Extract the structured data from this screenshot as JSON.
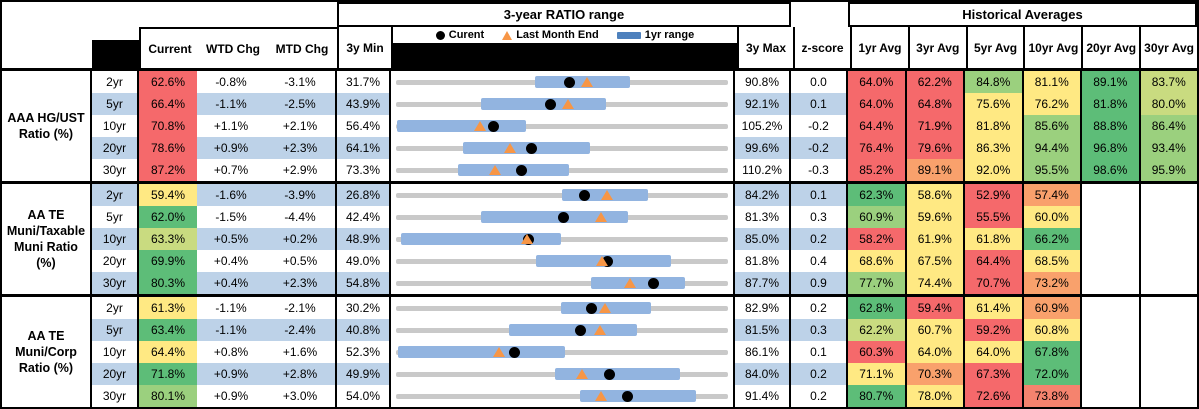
{
  "header": {
    "range_title": "3-year RATIO range",
    "hist_title": "Historical Averages",
    "col_current": "Current",
    "col_wtd": "WTD Chg",
    "col_mtd": "MTD Chg",
    "col_min": "3y Min",
    "col_max": "3y Max",
    "col_z": "z-score",
    "avg_cols": [
      "1yr Avg",
      "3yr Avg",
      "5yr Avg",
      "10yr Avg",
      "20yr Avg",
      "30yr Avg"
    ],
    "legend": {
      "current_label": "Curent",
      "lme_label": "Last Month End",
      "range_label": "1yr range"
    }
  },
  "palette": {
    "red": "#F5696B",
    "salmon": "#F5836E",
    "orange": "#F9A16C",
    "yellow": "#FFE983",
    "ygreen": "#C9DB80",
    "lgreen": "#9BD07E",
    "green": "#5DBD78",
    "white": "#FFFFFF",
    "band_blue": "#BDD2E8",
    "range_bar_blue": "#92B4E0",
    "legend_bar_blue": "#4E81BD",
    "track_gray": "#C9C9C9",
    "triangle_orange": "#F79646"
  },
  "groups": [
    {
      "name": "AAA HG/UST Ratio (%)",
      "rows": [
        {
          "tenor": "2yr",
          "band": false,
          "current": "62.6%",
          "cc": "red",
          "wtd": "-0.8%",
          "mtd": "-3.1%",
          "min": "31.7%",
          "max": "90.8%",
          "z": "0.0",
          "chart": {
            "lo": 31.7,
            "hi": 90.8,
            "r1lo": 56.5,
            "r1hi": 73.4,
            "cur": 62.6,
            "lme": 65.7
          },
          "avgs": [
            {
              "v": "64.0%",
              "c": "red"
            },
            {
              "v": "62.2%",
              "c": "red"
            },
            {
              "v": "84.8%",
              "c": "lgreen"
            },
            {
              "v": "81.1%",
              "c": "yellow"
            },
            {
              "v": "89.1%",
              "c": "green"
            },
            {
              "v": "83.7%",
              "c": "ygreen"
            }
          ]
        },
        {
          "tenor": "5yr",
          "band": true,
          "current": "66.4%",
          "cc": "red",
          "wtd": "-1.1%",
          "mtd": "-2.5%",
          "min": "43.9%",
          "max": "92.1%",
          "z": "0.1",
          "chart": {
            "lo": 43.9,
            "hi": 92.1,
            "r1lo": 56.2,
            "r1hi": 74.4,
            "cur": 66.4,
            "lme": 68.9
          },
          "avgs": [
            {
              "v": "64.0%",
              "c": "red"
            },
            {
              "v": "64.8%",
              "c": "red"
            },
            {
              "v": "75.6%",
              "c": "yellow"
            },
            {
              "v": "76.2%",
              "c": "yellow"
            },
            {
              "v": "81.8%",
              "c": "green"
            },
            {
              "v": "80.0%",
              "c": "ygreen"
            }
          ]
        },
        {
          "tenor": "10yr",
          "band": false,
          "current": "70.8%",
          "cc": "red",
          "wtd": "+1.1%",
          "mtd": "+2.1%",
          "min": "56.4%",
          "max": "105.2%",
          "z": "-0.2",
          "chart": {
            "lo": 56.4,
            "hi": 105.2,
            "r1lo": 56.6,
            "r1hi": 75.5,
            "cur": 70.8,
            "lme": 68.7
          },
          "avgs": [
            {
              "v": "64.4%",
              "c": "red"
            },
            {
              "v": "71.9%",
              "c": "red"
            },
            {
              "v": "81.8%",
              "c": "yellow"
            },
            {
              "v": "85.6%",
              "c": "lgreen"
            },
            {
              "v": "88.8%",
              "c": "green"
            },
            {
              "v": "86.4%",
              "c": "lgreen"
            }
          ]
        },
        {
          "tenor": "20yr",
          "band": true,
          "current": "78.6%",
          "cc": "red",
          "wtd": "+0.9%",
          "mtd": "+2.3%",
          "min": "64.1%",
          "max": "99.6%",
          "z": "-0.2",
          "chart": {
            "lo": 64.1,
            "hi": 99.6,
            "r1lo": 71.3,
            "r1hi": 84.8,
            "cur": 78.6,
            "lme": 76.3
          },
          "avgs": [
            {
              "v": "76.4%",
              "c": "red"
            },
            {
              "v": "79.6%",
              "c": "red"
            },
            {
              "v": "86.3%",
              "c": "yellow"
            },
            {
              "v": "94.4%",
              "c": "lgreen"
            },
            {
              "v": "96.8%",
              "c": "green"
            },
            {
              "v": "93.4%",
              "c": "lgreen"
            }
          ]
        },
        {
          "tenor": "30yr",
          "band": false,
          "current": "87.2%",
          "cc": "red",
          "wtd": "+0.7%",
          "mtd": "+2.9%",
          "min": "73.3%",
          "max": "110.2%",
          "z": "-0.3",
          "chart": {
            "lo": 73.3,
            "hi": 110.2,
            "r1lo": 80.2,
            "r1hi": 92.5,
            "cur": 87.2,
            "lme": 84.3
          },
          "avgs": [
            {
              "v": "85.2%",
              "c": "red"
            },
            {
              "v": "89.1%",
              "c": "orange"
            },
            {
              "v": "92.0%",
              "c": "yellow"
            },
            {
              "v": "95.5%",
              "c": "lgreen"
            },
            {
              "v": "98.6%",
              "c": "green"
            },
            {
              "v": "95.9%",
              "c": "lgreen"
            }
          ]
        }
      ]
    },
    {
      "name": "AA TE Muni/Taxable Muni Ratio (%)",
      "rows": [
        {
          "tenor": "2yr",
          "band": true,
          "current": "59.4%",
          "cc": "yellow",
          "wtd": "-1.6%",
          "mtd": "-3.9%",
          "min": "26.8%",
          "max": "84.2%",
          "z": "0.1",
          "chart": {
            "lo": 26.8,
            "hi": 84.2,
            "r1lo": 55.5,
            "r1hi": 70.4,
            "cur": 59.4,
            "lme": 63.3
          },
          "avgs": [
            {
              "v": "62.3%",
              "c": "green"
            },
            {
              "v": "58.6%",
              "c": "yellow"
            },
            {
              "v": "52.9%",
              "c": "red"
            },
            {
              "v": "57.4%",
              "c": "orange"
            },
            {
              "v": "",
              "c": "white"
            },
            {
              "v": "",
              "c": "white"
            }
          ]
        },
        {
          "tenor": "5yr",
          "band": false,
          "current": "62.0%",
          "cc": "green",
          "wtd": "-1.5%",
          "mtd": "-4.4%",
          "min": "42.4%",
          "max": "81.3%",
          "z": "0.3",
          "chart": {
            "lo": 42.4,
            "hi": 81.3,
            "r1lo": 52.4,
            "r1hi": 69.6,
            "cur": 62.0,
            "lme": 66.4
          },
          "avgs": [
            {
              "v": "60.9%",
              "c": "lgreen"
            },
            {
              "v": "59.6%",
              "c": "yellow"
            },
            {
              "v": "55.5%",
              "c": "red"
            },
            {
              "v": "60.0%",
              "c": "yellow"
            },
            {
              "v": "",
              "c": "white"
            },
            {
              "v": "",
              "c": "white"
            }
          ]
        },
        {
          "tenor": "10yr",
          "band": true,
          "current": "63.3%",
          "cc": "ygreen",
          "wtd": "+0.5%",
          "mtd": "+0.2%",
          "min": "48.9%",
          "max": "85.0%",
          "z": "0.2",
          "chart": {
            "lo": 48.9,
            "hi": 85.0,
            "r1lo": 49.4,
            "r1hi": 66.8,
            "cur": 63.3,
            "lme": 63.1
          },
          "avgs": [
            {
              "v": "58.2%",
              "c": "red"
            },
            {
              "v": "61.9%",
              "c": "yellow"
            },
            {
              "v": "61.8%",
              "c": "yellow"
            },
            {
              "v": "66.2%",
              "c": "green"
            },
            {
              "v": "",
              "c": "white"
            },
            {
              "v": "",
              "c": "white"
            }
          ]
        },
        {
          "tenor": "20yr",
          "band": false,
          "current": "69.9%",
          "cc": "green",
          "wtd": "+0.4%",
          "mtd": "+0.5%",
          "min": "49.0%",
          "max": "81.8%",
          "z": "0.4",
          "chart": {
            "lo": 49.0,
            "hi": 81.8,
            "r1lo": 62.8,
            "r1hi": 76.2,
            "cur": 69.9,
            "lme": 69.4
          },
          "avgs": [
            {
              "v": "68.6%",
              "c": "yellow"
            },
            {
              "v": "67.5%",
              "c": "yellow"
            },
            {
              "v": "64.4%",
              "c": "red"
            },
            {
              "v": "68.5%",
              "c": "yellow"
            },
            {
              "v": "",
              "c": "white"
            },
            {
              "v": "",
              "c": "white"
            }
          ]
        },
        {
          "tenor": "30yr",
          "band": true,
          "current": "80.3%",
          "cc": "green",
          "wtd": "+0.4%",
          "mtd": "+2.3%",
          "min": "54.8%",
          "max": "87.7%",
          "z": "0.9",
          "chart": {
            "lo": 54.8,
            "hi": 87.7,
            "r1lo": 74.1,
            "r1hi": 83.4,
            "cur": 80.3,
            "lme": 78.0
          },
          "avgs": [
            {
              "v": "77.7%",
              "c": "lgreen"
            },
            {
              "v": "74.4%",
              "c": "yellow"
            },
            {
              "v": "70.7%",
              "c": "red"
            },
            {
              "v": "73.2%",
              "c": "orange"
            },
            {
              "v": "",
              "c": "white"
            },
            {
              "v": "",
              "c": "white"
            }
          ]
        }
      ]
    },
    {
      "name": "AA TE Muni/Corp Ratio (%)",
      "rows": [
        {
          "tenor": "2yr",
          "band": false,
          "current": "61.3%",
          "cc": "yellow",
          "wtd": "-1.1%",
          "mtd": "-2.1%",
          "min": "30.2%",
          "max": "82.9%",
          "z": "0.2",
          "chart": {
            "lo": 30.2,
            "hi": 82.9,
            "r1lo": 56.4,
            "r1hi": 70.7,
            "cur": 61.3,
            "lme": 63.4
          },
          "avgs": [
            {
              "v": "62.8%",
              "c": "green"
            },
            {
              "v": "59.4%",
              "c": "red"
            },
            {
              "v": "61.4%",
              "c": "yellow"
            },
            {
              "v": "60.9%",
              "c": "orange"
            },
            {
              "v": "",
              "c": "white"
            },
            {
              "v": "",
              "c": "white"
            }
          ]
        },
        {
          "tenor": "5yr",
          "band": true,
          "current": "63.4%",
          "cc": "green",
          "wtd": "-1.1%",
          "mtd": "-2.4%",
          "min": "40.8%",
          "max": "81.5%",
          "z": "0.3",
          "chart": {
            "lo": 40.8,
            "hi": 81.5,
            "r1lo": 54.7,
            "r1hi": 70.4,
            "cur": 63.4,
            "lme": 65.8
          },
          "avgs": [
            {
              "v": "62.2%",
              "c": "ygreen"
            },
            {
              "v": "60.7%",
              "c": "yellow"
            },
            {
              "v": "59.2%",
              "c": "red"
            },
            {
              "v": "60.8%",
              "c": "yellow"
            },
            {
              "v": "",
              "c": "white"
            },
            {
              "v": "",
              "c": "white"
            }
          ]
        },
        {
          "tenor": "10yr",
          "band": false,
          "current": "64.4%",
          "cc": "yellow",
          "wtd": "+0.8%",
          "mtd": "+1.6%",
          "min": "52.3%",
          "max": "86.1%",
          "z": "0.1",
          "chart": {
            "lo": 52.3,
            "hi": 86.1,
            "r1lo": 52.5,
            "r1hi": 69.5,
            "cur": 64.4,
            "lme": 62.8
          },
          "avgs": [
            {
              "v": "60.3%",
              "c": "red"
            },
            {
              "v": "64.0%",
              "c": "yellow"
            },
            {
              "v": "64.0%",
              "c": "yellow"
            },
            {
              "v": "67.8%",
              "c": "green"
            },
            {
              "v": "",
              "c": "white"
            },
            {
              "v": "",
              "c": "white"
            }
          ]
        },
        {
          "tenor": "20yr",
          "band": true,
          "current": "71.8%",
          "cc": "green",
          "wtd": "+0.9%",
          "mtd": "+2.8%",
          "min": "49.9%",
          "max": "84.0%",
          "z": "0.2",
          "chart": {
            "lo": 49.9,
            "hi": 84.0,
            "r1lo": 66.2,
            "r1hi": 79.1,
            "cur": 71.8,
            "lme": 69.0
          },
          "avgs": [
            {
              "v": "71.1%",
              "c": "yellow"
            },
            {
              "v": "70.3%",
              "c": "orange"
            },
            {
              "v": "67.3%",
              "c": "red"
            },
            {
              "v": "72.0%",
              "c": "green"
            },
            {
              "v": "",
              "c": "white"
            },
            {
              "v": "",
              "c": "white"
            }
          ]
        },
        {
          "tenor": "30yr",
          "band": false,
          "current": "80.1%",
          "cc": "lgreen",
          "wtd": "+0.9%",
          "mtd": "+3.0%",
          "min": "54.0%",
          "max": "91.4%",
          "z": "0.2",
          "chart": {
            "lo": 54.0,
            "hi": 91.4,
            "r1lo": 74.7,
            "r1hi": 87.8,
            "cur": 80.1,
            "lme": 77.1
          },
          "avgs": [
            {
              "v": "80.7%",
              "c": "green"
            },
            {
              "v": "78.0%",
              "c": "yellow"
            },
            {
              "v": "72.6%",
              "c": "red"
            },
            {
              "v": "73.8%",
              "c": "salmon"
            },
            {
              "v": "",
              "c": "white"
            },
            {
              "v": "",
              "c": "white"
            }
          ]
        }
      ]
    }
  ],
  "chart_data": [
    {
      "type": "range",
      "group": "AAA HG/UST Ratio (%)",
      "categories": [
        "2yr",
        "5yr",
        "10yr",
        "20yr",
        "30yr"
      ],
      "min_3y": [
        31.7,
        43.9,
        56.4,
        64.1,
        73.3
      ],
      "max_3y": [
        90.8,
        92.1,
        105.2,
        99.6,
        110.2
      ],
      "current": [
        62.6,
        66.4,
        70.8,
        78.6,
        87.2
      ],
      "last_month_end": [
        65.7,
        68.9,
        68.7,
        76.3,
        84.3
      ],
      "yr1_low": [
        56.5,
        56.2,
        56.6,
        71.3,
        80.2
      ],
      "yr1_high": [
        73.4,
        74.4,
        75.5,
        84.8,
        92.5
      ],
      "z_score": [
        0.0,
        0.1,
        -0.2,
        -0.2,
        -0.3
      ]
    },
    {
      "type": "range",
      "group": "AA TE Muni/Taxable Muni Ratio (%)",
      "categories": [
        "2yr",
        "5yr",
        "10yr",
        "20yr",
        "30yr"
      ],
      "min_3y": [
        26.8,
        42.4,
        48.9,
        49.0,
        54.8
      ],
      "max_3y": [
        84.2,
        81.3,
        85.0,
        81.8,
        87.7
      ],
      "current": [
        59.4,
        62.0,
        63.3,
        69.9,
        80.3
      ],
      "last_month_end": [
        63.3,
        66.4,
        63.1,
        69.4,
        78.0
      ],
      "yr1_low": [
        55.5,
        52.4,
        49.4,
        62.8,
        74.1
      ],
      "yr1_high": [
        70.4,
        69.6,
        66.8,
        76.2,
        83.4
      ],
      "z_score": [
        0.1,
        0.3,
        0.2,
        0.4,
        0.9
      ]
    },
    {
      "type": "range",
      "group": "AA TE Muni/Corp Ratio (%)",
      "categories": [
        "2yr",
        "5yr",
        "10yr",
        "20yr",
        "30yr"
      ],
      "min_3y": [
        30.2,
        40.8,
        52.3,
        49.9,
        54.0
      ],
      "max_3y": [
        82.9,
        81.5,
        86.1,
        84.0,
        91.4
      ],
      "current": [
        61.3,
        63.4,
        64.4,
        71.8,
        80.1
      ],
      "last_month_end": [
        63.4,
        65.8,
        62.8,
        69.0,
        77.1
      ],
      "yr1_low": [
        56.4,
        54.7,
        52.5,
        66.2,
        74.7
      ],
      "yr1_high": [
        70.7,
        70.4,
        69.5,
        79.1,
        87.8
      ],
      "z_score": [
        0.2,
        0.3,
        0.1,
        0.2,
        0.2
      ]
    }
  ]
}
